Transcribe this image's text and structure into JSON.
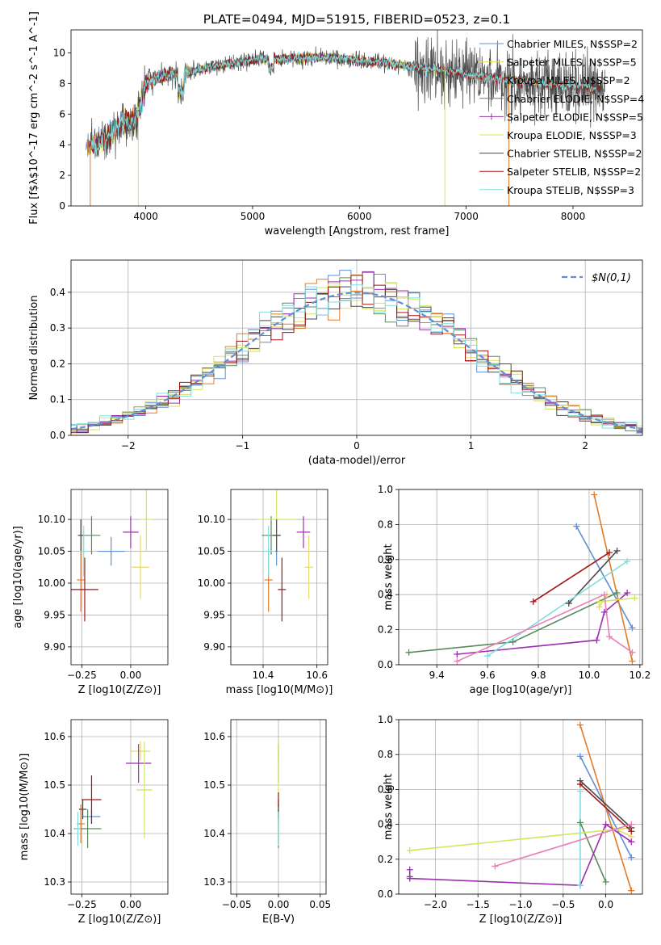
{
  "title": "PLATE=0494, MJD=51915, FIBERID=0523, z=0.1",
  "colors": [
    "#5f8fd8",
    "#e6d96a",
    "#e07b2a",
    "#5a8a60",
    "#9b2fb0",
    "#cfe85a",
    "#4a4a4a",
    "#a31616",
    "#7fdde0"
  ],
  "colors_note_ignore": "",
  "series_names": [
    "Chabrier MILES, N$SSP=2",
    "Salpeter MILES, N$SSP=5",
    "Kroupa MILES, N$SSP=2",
    "Chabrier ELODIE, N$SSP=4",
    "Salpeter ELODIE, N$SSP=5",
    "Kroupa ELODIE, N$SSP=3",
    "Chabrier STELIB, N$SSP=2",
    "Salpeter STELIB, N$SSP=2",
    "Kroupa STELIB, N$SSP=3"
  ],
  "chart_data": [
    {
      "id": "spectrum",
      "type": "line",
      "xlabel": "wavelength [Angstrom, rest frame]",
      "ylabel": "Flux [f$λ$10^-17 erg cm^-2 s^-1 A^-1]",
      "xlim": [
        3300,
        8650
      ],
      "ylim": [
        0,
        11.5
      ],
      "xticks": [
        4000,
        5000,
        6000,
        7000,
        8000
      ],
      "yticks": [
        0,
        2,
        4,
        6,
        8,
        10
      ],
      "grid": false,
      "legend": "right",
      "continuum_x": [
        3450,
        3600,
        3800,
        3900,
        3950,
        4000,
        4150,
        4300,
        4500,
        4700,
        4900,
        5100,
        5300,
        5500,
        5700,
        5900,
        6100,
        6300,
        6500,
        6700,
        6900,
        7100,
        7300,
        7500,
        7700,
        7900,
        8100,
        8300
      ],
      "continuum_y": [
        3.8,
        4.3,
        5.5,
        5.6,
        6.6,
        8.0,
        8.5,
        8.6,
        8.9,
        9.2,
        9.4,
        9.6,
        9.6,
        9.7,
        9.7,
        9.6,
        9.4,
        9.3,
        9.1,
        8.9,
        8.7,
        8.5,
        8.3,
        8.2,
        8.0,
        7.9,
        7.8,
        7.6
      ]
    },
    {
      "id": "residuals",
      "type": "bar",
      "xlabel": "(data-model)/error",
      "ylabel": "Normed distribution",
      "xlim": [
        -2.5,
        2.5
      ],
      "ylim": [
        0,
        0.49
      ],
      "xticks": [
        -2,
        -1,
        0,
        1,
        2
      ],
      "yticks": [
        0.0,
        0.1,
        0.2,
        0.3,
        0.4
      ],
      "grid": true,
      "legend": "top-right",
      "reference_curve": "$N(0,1)",
      "bin_width": 0.1
    },
    {
      "id": "age_vs_Z",
      "type": "scatter",
      "xlabel": "Z [log10(Z/Z⊙)]",
      "ylabel": "age  [log10(age/yr)]",
      "xlim": [
        -0.305,
        0.19
      ],
      "ylim": [
        9.872,
        10.147
      ],
      "xticks": [
        -0.25,
        0.0
      ],
      "yticks": [
        9.9,
        9.95,
        10.0,
        10.05,
        10.1
      ],
      "grid": true,
      "points": [
        {
          "x": -0.1,
          "y": 10.05,
          "xerr": 0.14,
          "yerr": 0.045
        },
        {
          "x": 0.05,
          "y": 10.025,
          "xerr": 0.09,
          "yerr": 0.1
        },
        {
          "x": -0.255,
          "y": 10.005,
          "xerr": 0.04,
          "yerr": 0.1
        },
        {
          "x": -0.2,
          "y": 10.075,
          "xerr": 0.09,
          "yerr": 0.06
        },
        {
          "x": 0.0,
          "y": 10.08,
          "xerr": 0.08,
          "yerr": 0.05
        },
        {
          "x": 0.08,
          "y": 10.1,
          "xerr": 0.07,
          "yerr": 0.1
        },
        {
          "x": -0.255,
          "y": 10.075,
          "xerr": 0.03,
          "yerr": 0.05
        },
        {
          "x": -0.235,
          "y": 9.99,
          "xerr": 0.14,
          "yerr": 0.1
        },
        {
          "x": -0.24,
          "y": 10.05,
          "xerr": 0.04,
          "yerr": 0.08
        }
      ]
    },
    {
      "id": "age_vs_mass",
      "type": "scatter",
      "xlabel": "mass [log10(M/M⊙)]",
      "ylabel": "",
      "xlim": [
        10.28,
        10.64
      ],
      "ylim": [
        9.872,
        10.147
      ],
      "xticks": [
        10.4,
        10.6
      ],
      "yticks": [
        9.9,
        9.95,
        10.0,
        10.05,
        10.1
      ],
      "grid": true,
      "points": [
        {
          "x": 10.45,
          "y": 10.05,
          "xerr": 0.01,
          "yerr": 0.045
        },
        {
          "x": 10.57,
          "y": 10.025,
          "xerr": 0.03,
          "yerr": 0.1
        },
        {
          "x": 10.42,
          "y": 10.005,
          "xerr": 0.03,
          "yerr": 0.1
        },
        {
          "x": 10.43,
          "y": 10.075,
          "xerr": 0.07,
          "yerr": 0.06
        },
        {
          "x": 10.55,
          "y": 10.08,
          "xerr": 0.05,
          "yerr": 0.05
        },
        {
          "x": 10.45,
          "y": 10.1,
          "xerr": 0.15,
          "yerr": 0.1
        },
        {
          "x": 10.45,
          "y": 10.075,
          "xerr": 0.03,
          "yerr": 0.05
        },
        {
          "x": 10.47,
          "y": 9.99,
          "xerr": 0.03,
          "yerr": 0.1
        },
        {
          "x": 10.42,
          "y": 10.05,
          "xerr": 0.03,
          "yerr": 0.08
        }
      ]
    },
    {
      "id": "weight_vs_age",
      "type": "line",
      "xlabel": "age  [log10(age/yr)]",
      "ylabel": "mass weight",
      "xlim": [
        9.25,
        10.21
      ],
      "ylim": [
        0,
        1.0
      ],
      "xticks": [
        9.4,
        9.6,
        9.8,
        10.0,
        10.2
      ],
      "yticks": [
        0.0,
        0.2,
        0.4,
        0.6,
        0.8,
        1.0
      ],
      "grid": true,
      "series": [
        {
          "x": [
            9.95,
            10.17
          ],
          "y": [
            0.79,
            0.21
          ]
        },
        {
          "x": [
            10.04,
            10.07
          ],
          "y": [
            0.33,
            0.4
          ]
        },
        {
          "x": [
            10.02,
            10.17
          ],
          "y": [
            0.97,
            0.02
          ]
        },
        {
          "x": [
            9.29,
            9.7,
            10.11
          ],
          "y": [
            0.07,
            0.13,
            0.41
          ]
        },
        {
          "x": [
            9.48,
            10.03,
            10.06,
            10.15
          ],
          "y": [
            0.06,
            0.14,
            0.3,
            0.41
          ]
        },
        {
          "x": [
            10.04,
            10.18
          ],
          "y": [
            0.36,
            0.38
          ]
        },
        {
          "x": [
            9.92,
            10.11
          ],
          "y": [
            0.35,
            0.65
          ]
        },
        {
          "x": [
            9.78,
            10.08
          ],
          "y": [
            0.36,
            0.64
          ]
        },
        {
          "x": [
            9.6,
            10.15
          ],
          "y": [
            0.05,
            0.59
          ]
        },
        {
          "x": [
            9.48,
            10.06,
            10.08,
            10.17
          ],
          "y": [
            0.02,
            0.4,
            0.16,
            0.07
          ]
        }
      ]
    },
    {
      "id": "mass_vs_Z",
      "type": "scatter",
      "xlabel": "Z [log10(Z/Z⊙)]",
      "ylabel": "mass [log10(M/M⊙)]",
      "xlim": [
        -0.305,
        0.19
      ],
      "ylim": [
        10.275,
        10.635
      ],
      "xticks": [
        -0.25,
        0.0
      ],
      "yticks": [
        10.3,
        10.4,
        10.5,
        10.6
      ],
      "grid": true,
      "points": [
        {
          "x": -0.2,
          "y": 10.435,
          "xerr": 0.09,
          "yerr": 0.03
        },
        {
          "x": 0.05,
          "y": 10.57,
          "xerr": 0.1,
          "yerr": 0.04
        },
        {
          "x": -0.255,
          "y": 10.42,
          "xerr": 0.04,
          "yerr": 0.08
        },
        {
          "x": -0.22,
          "y": 10.41,
          "xerr": 0.14,
          "yerr": 0.08
        },
        {
          "x": 0.04,
          "y": 10.545,
          "xerr": 0.13,
          "yerr": 0.08
        },
        {
          "x": 0.07,
          "y": 10.49,
          "xerr": 0.08,
          "yerr": 0.2
        },
        {
          "x": -0.245,
          "y": 10.45,
          "xerr": 0.04,
          "yerr": 0.04
        },
        {
          "x": -0.2,
          "y": 10.47,
          "xerr": 0.1,
          "yerr": 0.1
        },
        {
          "x": -0.27,
          "y": 10.41,
          "xerr": 0.03,
          "yerr": 0.07
        }
      ]
    },
    {
      "id": "mass_vs_EBV",
      "type": "scatter",
      "xlabel": "E(B-V)",
      "ylabel": "",
      "xlim": [
        -0.057,
        0.057
      ],
      "ylim": [
        10.275,
        10.635
      ],
      "xticks": [
        -0.05,
        0.0,
        0.05
      ],
      "yticks": [
        10.3,
        10.4,
        10.5,
        10.6
      ],
      "grid": true,
      "points": [
        {
          "x": 0.0,
          "y": 10.435,
          "xerr": 0,
          "yerr": 0.03
        },
        {
          "x": 0.0,
          "y": 10.57,
          "xerr": 0,
          "yerr": 0.04
        },
        {
          "x": 0.0,
          "y": 10.42,
          "xerr": 0,
          "yerr": 0.08
        },
        {
          "x": 0.0,
          "y": 10.41,
          "xerr": 0,
          "yerr": 0.08
        },
        {
          "x": 0.0,
          "y": 10.545,
          "xerr": 0,
          "yerr": 0.08
        },
        {
          "x": 0.0,
          "y": 10.49,
          "xerr": 0,
          "yerr": 0.2
        },
        {
          "x": 0.0,
          "y": 10.45,
          "xerr": 0,
          "yerr": 0.04
        },
        {
          "x": 0.0,
          "y": 10.47,
          "xerr": 0,
          "yerr": 0.03
        },
        {
          "x": 0.0,
          "y": 10.41,
          "xerr": 0,
          "yerr": 0.07
        }
      ]
    },
    {
      "id": "weight_vs_Z",
      "type": "line",
      "xlabel": "Z [log10(Z/Z⊙)]",
      "ylabel": "mass weight",
      "xlim": [
        -2.43,
        0.43
      ],
      "ylim": [
        0,
        1.0
      ],
      "xticks": [
        -2.0,
        -1.5,
        -1.0,
        -0.5,
        0.0
      ],
      "yticks": [
        0.0,
        0.2,
        0.4,
        0.6,
        0.8,
        1.0
      ],
      "grid": true,
      "series": [
        {
          "x": [
            -0.3,
            0.3
          ],
          "y": [
            0.79,
            0.21
          ]
        },
        {
          "x": [
            0.0,
            0.3
          ],
          "y": [
            0.4,
            0.33
          ]
        },
        {
          "x": [
            -0.3,
            0.3
          ],
          "y": [
            0.97,
            0.02
          ]
        },
        {
          "x": [
            -0.3,
            0.0
          ],
          "y": [
            0.41,
            0.07
          ]
        },
        {
          "x": [
            -2.3,
            -0.3,
            0.0,
            0.3
          ],
          "y": [
            0.09,
            0.05,
            0.4,
            0.3
          ]
        },
        {
          "x": [
            -2.3,
            0.3
          ],
          "y": [
            0.25,
            0.38
          ]
        },
        {
          "x": [
            -0.3,
            0.3
          ],
          "y": [
            0.65,
            0.38
          ]
        },
        {
          "x": [
            -0.3,
            0.3
          ],
          "y": [
            0.63,
            0.36
          ]
        },
        {
          "x": [
            -0.3,
            -0.3
          ],
          "y": [
            0.59,
            0.05
          ]
        },
        {
          "x": [
            -1.3,
            0.3
          ],
          "y": [
            0.16,
            0.4
          ]
        },
        {
          "x": [
            -2.3,
            -2.3
          ],
          "y": [
            0.1,
            0.14
          ]
        }
      ]
    }
  ]
}
